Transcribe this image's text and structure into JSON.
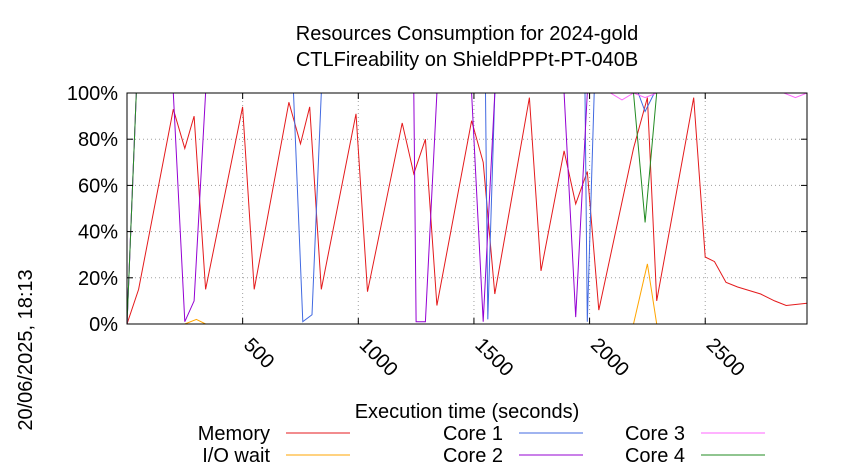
{
  "chart_data": {
    "type": "line",
    "title": "Resources Consumption for 2024-gold",
    "subtitle": "CTLFireability on ShieldPPPt-PT-040B",
    "xlabel": "Execution time (seconds)",
    "ylabel": "",
    "xlim": [
      0,
      2940
    ],
    "ylim": [
      0,
      100
    ],
    "x_ticks": [
      500,
      1000,
      1500,
      2000,
      2500
    ],
    "x_tick_labels": [
      "500",
      "1000",
      "1500",
      "2000",
      "2500"
    ],
    "y_ticks": [
      0,
      20,
      40,
      60,
      80,
      100
    ],
    "y_tick_labels": [
      "0%",
      "20%",
      "40%",
      "60%",
      "80%",
      "100%"
    ],
    "grid": true,
    "legend_position": "bottom",
    "timestamp": "20/06/2025, 18:13",
    "series": [
      {
        "name": "Memory",
        "color": "#e41a1c",
        "points": [
          [
            0,
            0
          ],
          [
            50,
            15
          ],
          [
            200,
            93
          ],
          [
            250,
            76
          ],
          [
            290,
            90
          ],
          [
            340,
            15
          ],
          [
            500,
            94
          ],
          [
            550,
            15
          ],
          [
            700,
            96
          ],
          [
            750,
            78
          ],
          [
            790,
            94
          ],
          [
            840,
            15
          ],
          [
            990,
            91
          ],
          [
            1040,
            14
          ],
          [
            1190,
            87
          ],
          [
            1240,
            65
          ],
          [
            1290,
            80
          ],
          [
            1340,
            8
          ],
          [
            1490,
            88
          ],
          [
            1540,
            70
          ],
          [
            1590,
            13
          ],
          [
            1740,
            98
          ],
          [
            1790,
            23
          ],
          [
            1890,
            75
          ],
          [
            1940,
            52
          ],
          [
            1990,
            66
          ],
          [
            2040,
            6
          ],
          [
            2190,
            76
          ],
          [
            2250,
            98
          ],
          [
            2290,
            10
          ],
          [
            2450,
            98
          ],
          [
            2500,
            29
          ],
          [
            2540,
            27
          ],
          [
            2590,
            18
          ],
          [
            2640,
            16
          ],
          [
            2740,
            13
          ],
          [
            2800,
            10
          ],
          [
            2850,
            8
          ],
          [
            2940,
            9
          ]
        ]
      },
      {
        "name": "I/O wait",
        "color": "#ffa500",
        "points": [
          [
            0,
            0
          ],
          [
            250,
            0
          ],
          [
            300,
            2
          ],
          [
            340,
            0
          ],
          [
            2190,
            0
          ],
          [
            2250,
            26
          ],
          [
            2290,
            0
          ],
          [
            2940,
            0
          ]
        ]
      },
      {
        "name": "Core 1",
        "color": "#4169e1",
        "points": [
          [
            0,
            0
          ],
          [
            40,
            100
          ],
          [
            720,
            100
          ],
          [
            760,
            1
          ],
          [
            800,
            4
          ],
          [
            840,
            100
          ],
          [
            1550,
            100
          ],
          [
            1560,
            2
          ],
          [
            1590,
            100
          ],
          [
            1980,
            100
          ],
          [
            1990,
            1
          ],
          [
            2020,
            100
          ],
          [
            2210,
            100
          ],
          [
            2240,
            92
          ],
          [
            2280,
            100
          ],
          [
            2940,
            100
          ]
        ]
      },
      {
        "name": "Core 2",
        "color": "#9400d3",
        "points": [
          [
            0,
            0
          ],
          [
            40,
            100
          ],
          [
            200,
            100
          ],
          [
            250,
            1
          ],
          [
            290,
            10
          ],
          [
            340,
            100
          ],
          [
            1240,
            100
          ],
          [
            1250,
            1
          ],
          [
            1290,
            1
          ],
          [
            1340,
            100
          ],
          [
            1490,
            100
          ],
          [
            1540,
            1
          ],
          [
            1590,
            100
          ],
          [
            1890,
            100
          ],
          [
            1940,
            3
          ],
          [
            1990,
            100
          ],
          [
            2940,
            100
          ]
        ]
      },
      {
        "name": "Core 3",
        "color": "#ff66ff",
        "points": [
          [
            0,
            0
          ],
          [
            40,
            100
          ],
          [
            2090,
            100
          ],
          [
            2140,
            97
          ],
          [
            2190,
            100
          ],
          [
            2240,
            98
          ],
          [
            2290,
            100
          ],
          [
            2840,
            100
          ],
          [
            2890,
            98
          ],
          [
            2940,
            100
          ]
        ]
      },
      {
        "name": "Core 4",
        "color": "#228b22",
        "points": [
          [
            0,
            0
          ],
          [
            40,
            100
          ],
          [
            2190,
            100
          ],
          [
            2240,
            44
          ],
          [
            2290,
            100
          ],
          [
            2940,
            100
          ]
        ]
      }
    ]
  }
}
